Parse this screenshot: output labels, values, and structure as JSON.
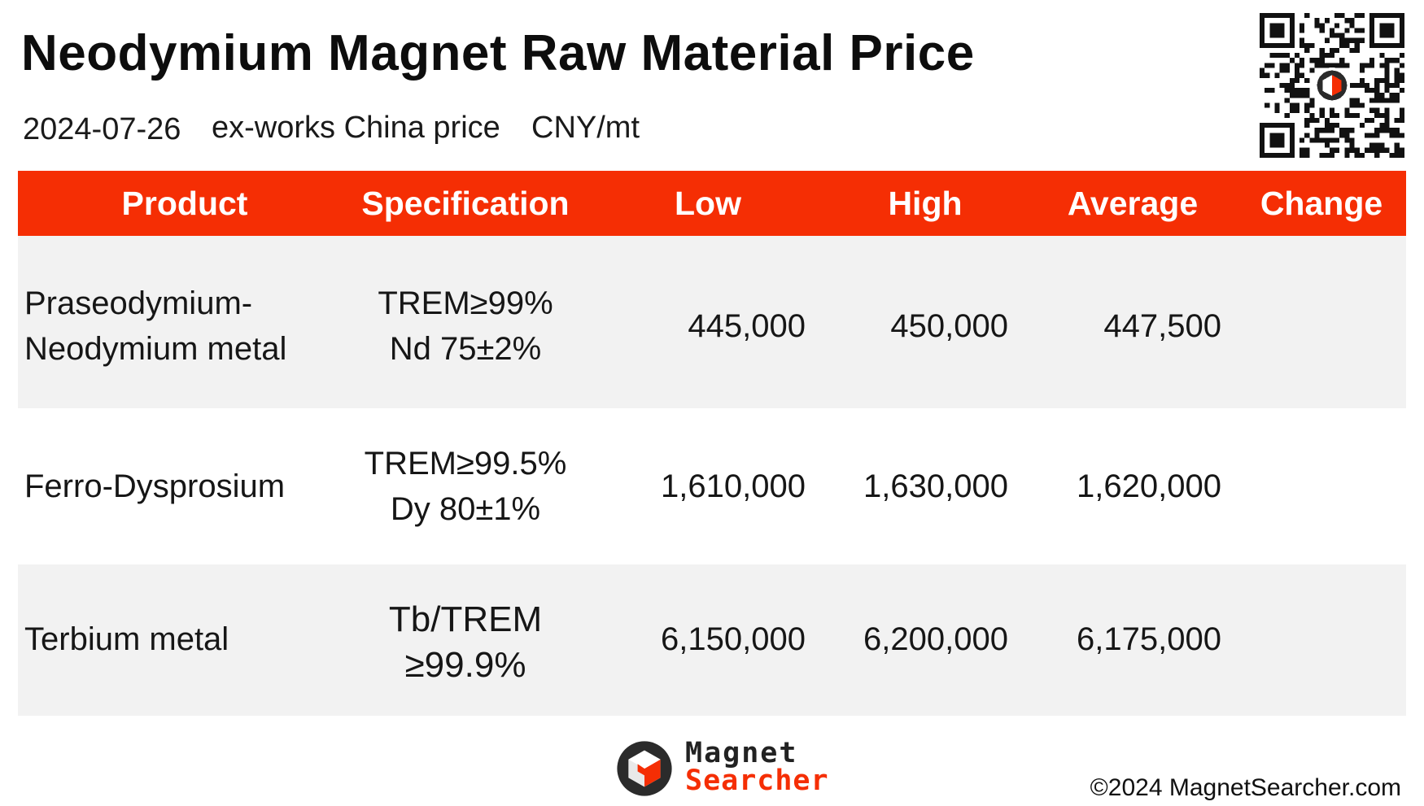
{
  "header": {
    "title": "Neodymium Magnet Raw Material Price",
    "date": "2024-07-26",
    "basis": "ex-works China price",
    "unit": "CNY/mt"
  },
  "table": {
    "columns": [
      "Product",
      "Specification",
      "Low",
      "High",
      "Average",
      "Change"
    ],
    "rows": [
      {
        "product_line1": "Praseodymium-",
        "product_line2": "Neodymium metal",
        "spec_line1": "TREM≥99%",
        "spec_line2": "Nd 75±2%",
        "low": "445,000",
        "high": "450,000",
        "average": "447,500",
        "change": ""
      },
      {
        "product_line1": "Ferro-Dysprosium",
        "product_line2": "",
        "spec_line1": "TREM≥99.5%",
        "spec_line2": "Dy 80±1%",
        "low": "1,610,000",
        "high": "1,630,000",
        "average": "1,620,000",
        "change": ""
      },
      {
        "product_line1": "Terbium metal",
        "product_line2": "",
        "spec_line1": "Tb/TREM",
        "spec_line2": "≥99.9%",
        "low": "6,150,000",
        "high": "6,200,000",
        "average": "6,175,000",
        "change": ""
      }
    ]
  },
  "brand": {
    "line1": "Magnet",
    "line2": "Searcher",
    "accent_color": "#f52e04",
    "logo_icon": "hexagon-cube-logo-icon"
  },
  "footer": {
    "copyright": "©2024 MagnetSearcher.com"
  },
  "qr_code": {
    "icon": "qr-code-icon"
  }
}
